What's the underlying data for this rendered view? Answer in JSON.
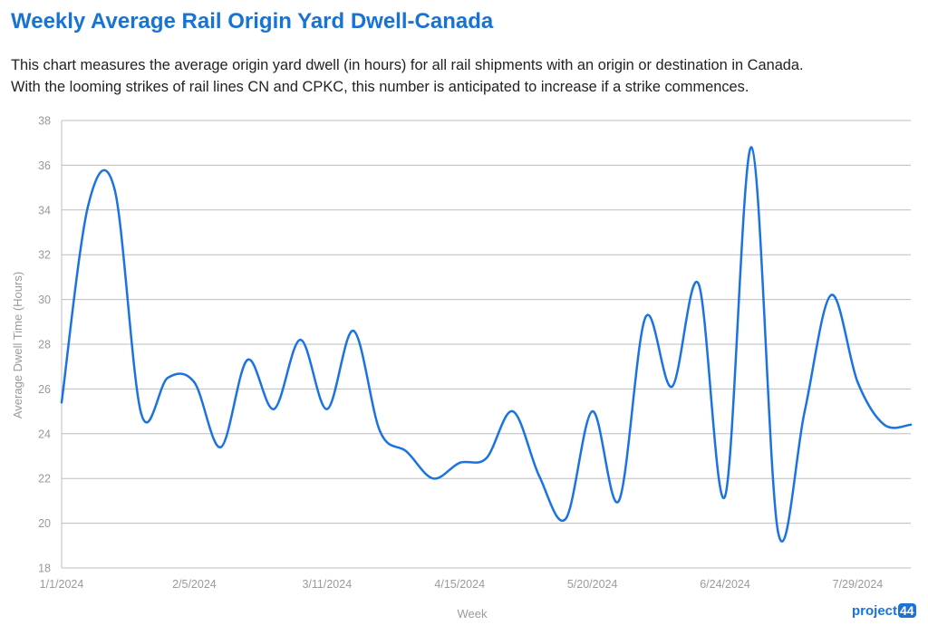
{
  "title": "Weekly Average Rail Origin Yard Dwell-Canada",
  "description": [
    "This chart measures the average origin yard dwell (in hours) for all rail shipments with an origin or destination in Canada.",
    "With the looming strikes of rail lines CN and CPKC, this number is anticipated to increase if a strike commences."
  ],
  "logo": {
    "text": "project",
    "number": "44"
  },
  "colors": {
    "title": "#1873d3",
    "line": "#1a73e0",
    "grid": "#bdbdbd",
    "axis_text": "#9a9a9a"
  },
  "chart_data": {
    "type": "line",
    "xlabel": "Week",
    "ylabel": "Average Dwell Time (Hours)",
    "ylim": [
      18,
      38
    ],
    "yticks": [
      18,
      20,
      22,
      24,
      26,
      28,
      30,
      32,
      34,
      36,
      38
    ],
    "xtick_labels": [
      "1/1/2024",
      "2/5/2024",
      "3/11/2024",
      "4/15/2024",
      "5/20/2024",
      "6/24/2024",
      "7/29/2024"
    ],
    "x": [
      "1/1/2024",
      "1/8/2024",
      "1/15/2024",
      "1/22/2024",
      "1/29/2024",
      "2/5/2024",
      "2/12/2024",
      "2/19/2024",
      "2/26/2024",
      "3/4/2024",
      "3/11/2024",
      "3/18/2024",
      "3/25/2024",
      "4/1/2024",
      "4/8/2024",
      "4/15/2024",
      "4/22/2024",
      "4/29/2024",
      "5/6/2024",
      "5/13/2024",
      "5/20/2024",
      "5/27/2024",
      "6/3/2024",
      "6/10/2024",
      "6/17/2024",
      "6/24/2024",
      "7/1/2024",
      "7/8/2024",
      "7/15/2024",
      "7/22/2024",
      "7/29/2024",
      "8/5/2024",
      "8/12/2024"
    ],
    "y": [
      25.4,
      34.2,
      34.9,
      24.9,
      26.5,
      26.3,
      23.4,
      27.3,
      25.1,
      28.2,
      25.1,
      28.6,
      24.1,
      23.2,
      22.0,
      22.7,
      22.9,
      25.0,
      22.1,
      20.2,
      25.0,
      21.0,
      29.2,
      26.1,
      30.7,
      21.2,
      36.8,
      19.6,
      25.0,
      30.2,
      26.3,
      24.4,
      24.4
    ],
    "grid": true,
    "legend": "none"
  }
}
